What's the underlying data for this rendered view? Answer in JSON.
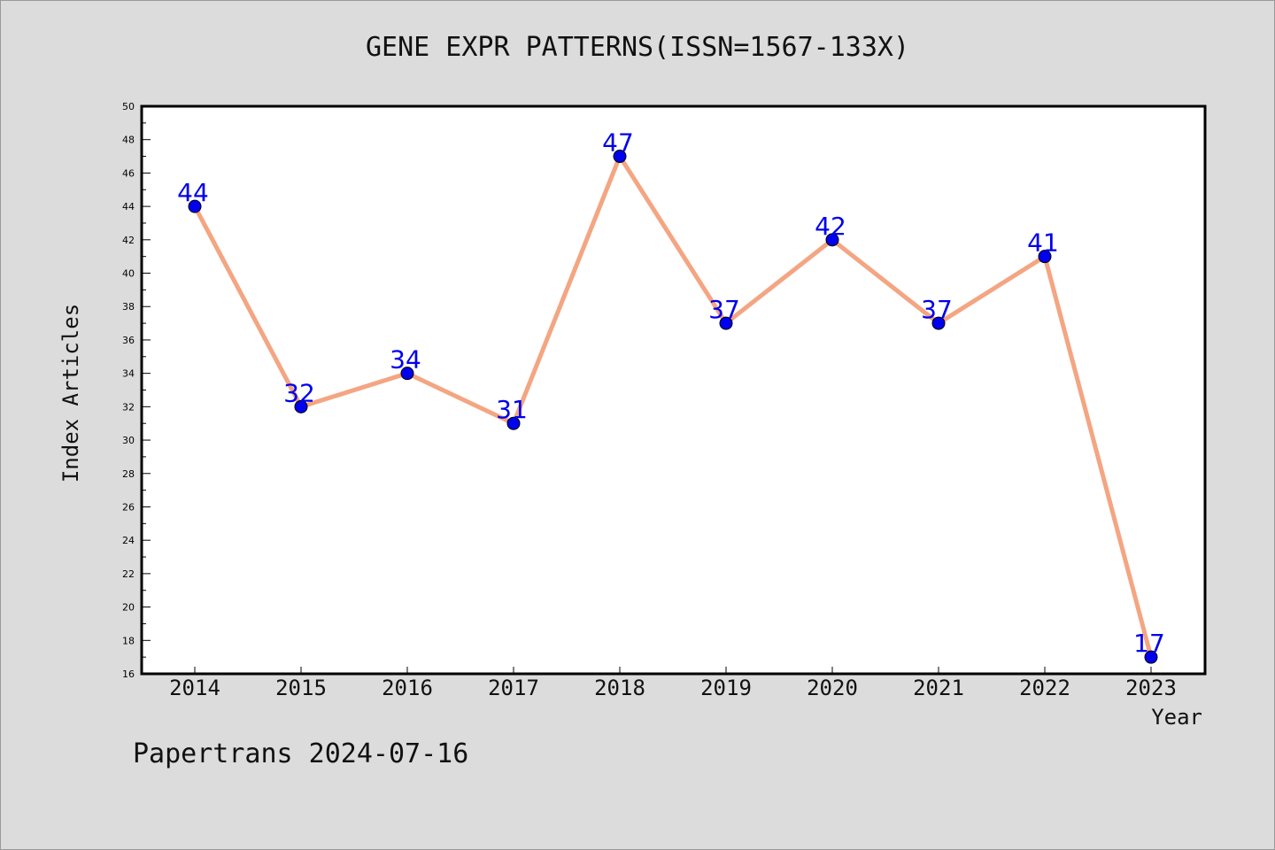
{
  "chart_data": {
    "type": "line",
    "title": "GENE EXPR PATTERNS(ISSN=1567-133X)",
    "xlabel": "Year",
    "ylabel": "Index Articles",
    "categories": [
      "2014",
      "2015",
      "2016",
      "2017",
      "2018",
      "2019",
      "2020",
      "2021",
      "2022",
      "2023"
    ],
    "values": [
      44,
      32,
      34,
      31,
      47,
      37,
      42,
      37,
      41,
      17
    ],
    "ylim": [
      16,
      50
    ],
    "yticks": [
      16,
      18,
      20,
      22,
      24,
      26,
      28,
      30,
      32,
      34,
      36,
      38,
      40,
      42,
      44,
      46,
      48,
      50
    ],
    "grid": false,
    "data_labels": true,
    "colors": {
      "line": "#f4a582",
      "marker": "#0000ee",
      "label": "#0000ee"
    }
  },
  "footer": {
    "text": "Papertrans 2024-07-16"
  }
}
